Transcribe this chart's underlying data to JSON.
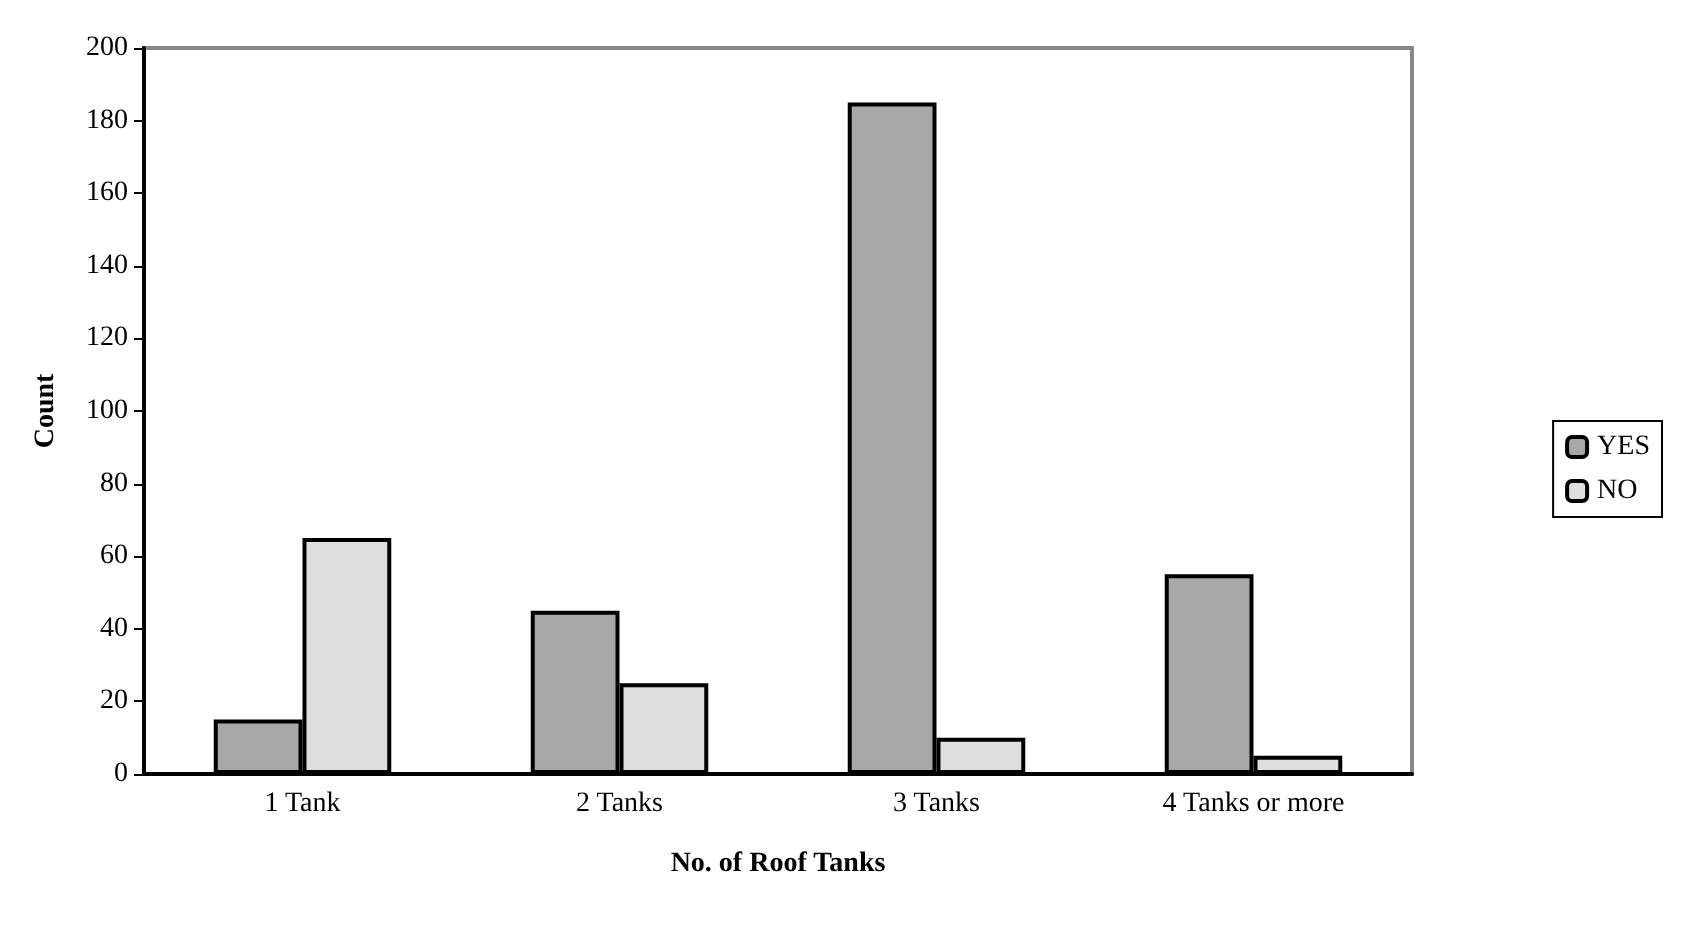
{
  "chart_data": {
    "type": "bar",
    "xlabel": "No. of Roof Tanks",
    "ylabel": "Count",
    "categories": [
      "1 Tank",
      "2 Tanks",
      "3 Tanks",
      "4 Tanks or more"
    ],
    "series": [
      {
        "name": "YES",
        "color": "#a8a8a8",
        "values": [
          15,
          45,
          185,
          55
        ]
      },
      {
        "name": "NO",
        "color": "#dedede",
        "values": [
          65,
          25,
          10,
          5
        ]
      }
    ],
    "ylim": [
      0,
      200
    ],
    "yticks": [
      0,
      20,
      40,
      60,
      80,
      100,
      120,
      140,
      160,
      180,
      200
    ],
    "grid": false,
    "legend": "right"
  }
}
